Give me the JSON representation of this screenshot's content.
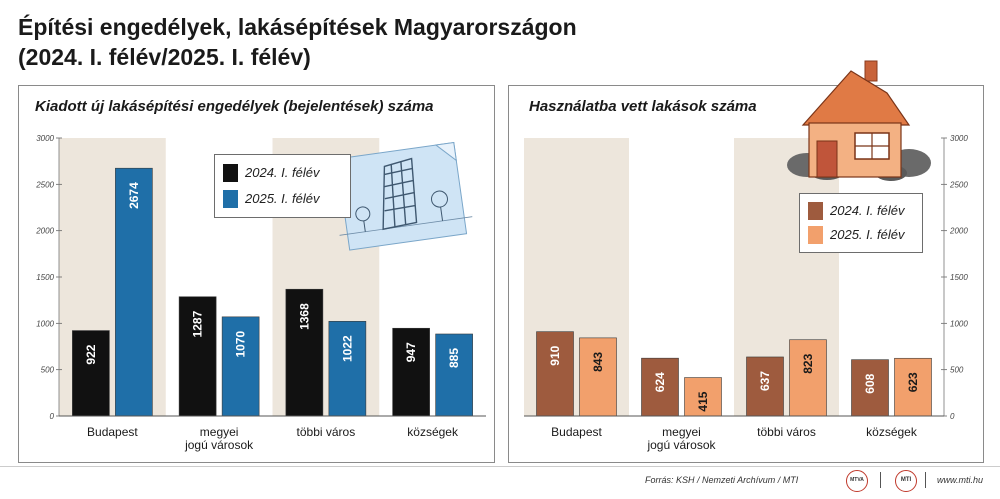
{
  "title": {
    "line1": "Építési engedélyek, lakásépítések Magyarországon",
    "line2": "(2024. I. félév/2025. I. félév)"
  },
  "chart_data": [
    {
      "type": "bar",
      "title": "Kiadott új lakásépítési engedélyek (bejelentések) száma",
      "categories": [
        "Budapest",
        "megyei\njogú városok",
        "többi város",
        "községek"
      ],
      "series": [
        {
          "name": "2024. I. félév",
          "values": [
            922,
            1287,
            1368,
            947
          ],
          "color": "#111111"
        },
        {
          "name": "2025. I. félév",
          "values": [
            2674,
            1070,
            1022,
            885
          ],
          "color": "#1f6fa8"
        }
      ],
      "ylim": [
        0,
        3000
      ],
      "yticks": [
        0,
        500,
        1000,
        1500,
        2000,
        2500,
        3000
      ],
      "axis_side": "left",
      "legend_position": "top-center",
      "band_color": "#ede6dc"
    },
    {
      "type": "bar",
      "title": "Használatba vett lakások száma",
      "categories": [
        "Budapest",
        "megyei\njogú városok",
        "többi város",
        "községek"
      ],
      "series": [
        {
          "name": "2024. I. félév",
          "values": [
            910,
            624,
            637,
            608
          ],
          "color": "#9e5b3e"
        },
        {
          "name": "2025. I. félév",
          "values": [
            843,
            415,
            823,
            623
          ],
          "color": "#f2a06c"
        }
      ],
      "ylim": [
        0,
        3000
      ],
      "yticks": [
        0,
        500,
        1000,
        1500,
        2000,
        2500,
        3000
      ],
      "axis_side": "right",
      "legend_position": "top-right",
      "band_color": "#ede6dc"
    }
  ],
  "footer": {
    "source": "Forrás: KSH / Nemzeti Archívum / MTI",
    "logo1": "MTVA",
    "logo2": "MTI",
    "url": "www.mti.hu"
  }
}
